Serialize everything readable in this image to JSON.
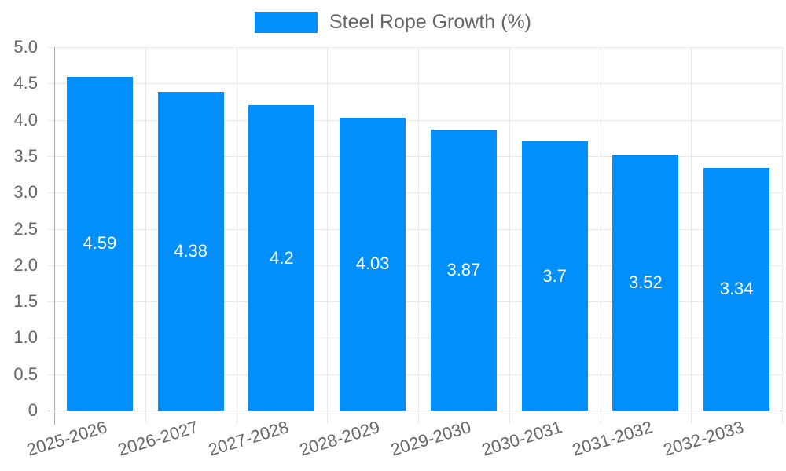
{
  "chart_data": {
    "type": "bar",
    "title": "",
    "legend": {
      "label": "Steel Rope Growth (%)",
      "position": "top"
    },
    "categories": [
      "2025-2026",
      "2026-2027",
      "2027-2028",
      "2028-2029",
      "2029-2030",
      "2030-2031",
      "2031-2032",
      "2032-2033"
    ],
    "values": [
      4.59,
      4.38,
      4.2,
      4.03,
      3.87,
      3.7,
      3.52,
      3.34
    ],
    "value_labels": [
      "4.59",
      "4.38",
      "4.2",
      "4.03",
      "3.87",
      "3.7",
      "3.52",
      "3.34"
    ],
    "xlabel": "",
    "ylabel": "",
    "ylim": [
      0,
      5
    ],
    "ytick_step": 0.5,
    "ytick_labels": [
      "5.0",
      "4.5",
      "4.0",
      "3.5",
      "3.0",
      "2.5",
      "2.0",
      "1.5",
      "1.0",
      "0.5",
      "0"
    ],
    "grid": true,
    "colors": {
      "bar": "#008FFB",
      "bar_label_text": "#FFFFFF",
      "axis_text": "#666666",
      "gridline": "#E8E8E8",
      "axis_line": "#A9A9A9",
      "background": "#FFFFFF"
    }
  }
}
